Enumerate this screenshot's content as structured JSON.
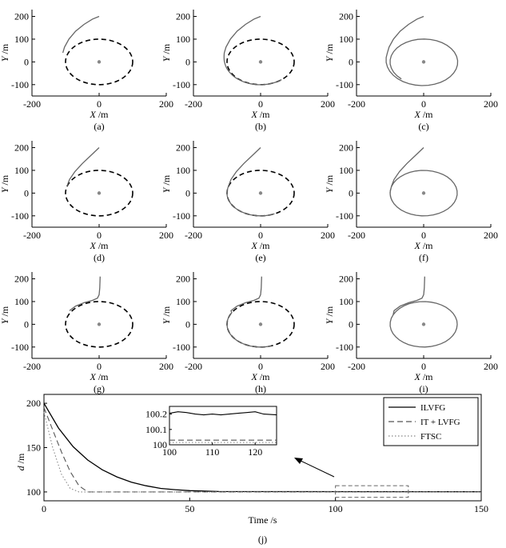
{
  "colors": {
    "trajectory": "#666666",
    "target_circle": "#000000",
    "center_dot": "#888888",
    "ilvfg": "#000000",
    "itlvfg": "#555555",
    "ftsc": "#888888",
    "zoom_box": "#666666"
  },
  "chart_data": [
    {
      "type": "line",
      "caption": "(a)",
      "xlabel_var": "X",
      "xlabel_unit": "/m",
      "ylabel_var": "Y",
      "ylabel_unit": "/m",
      "xlim": [
        -200,
        200
      ],
      "ylim": [
        -150,
        230
      ],
      "xticks": [
        -200,
        0,
        200
      ],
      "yticks": [
        -100,
        0,
        100,
        200
      ],
      "trajectory_method": 1,
      "trajectory_phase": 1,
      "circle_radius": 100,
      "circle_style": "dashed"
    },
    {
      "type": "line",
      "caption": "(b)",
      "xlabel_var": "X",
      "xlabel_unit": "/m",
      "ylabel_var": "Y",
      "ylabel_unit": "/m",
      "xlim": [
        -200,
        200
      ],
      "ylim": [
        -150,
        230
      ],
      "xticks": [
        -200,
        0,
        200
      ],
      "yticks": [
        -100,
        0,
        100,
        200
      ],
      "trajectory_method": 1,
      "trajectory_phase": 2,
      "circle_radius": 100,
      "circle_style": "dashed"
    },
    {
      "type": "line",
      "caption": "(c)",
      "xlabel_var": "X",
      "xlabel_unit": "/m",
      "ylabel_var": "Y",
      "ylabel_unit": "/m",
      "xlim": [
        -200,
        200
      ],
      "ylim": [
        -150,
        230
      ],
      "xticks": [
        -200,
        0,
        200
      ],
      "yticks": [
        -100,
        0,
        100,
        200
      ],
      "trajectory_method": 1,
      "trajectory_phase": 3,
      "circle_radius": 100,
      "circle_style": "hidden"
    },
    {
      "type": "line",
      "caption": "(d)",
      "xlabel_var": "X",
      "xlabel_unit": "/m",
      "ylabel_var": "Y",
      "ylabel_unit": "/m",
      "xlim": [
        -200,
        200
      ],
      "ylim": [
        -150,
        230
      ],
      "xticks": [
        -200,
        0,
        200
      ],
      "yticks": [
        -100,
        0,
        100,
        200
      ],
      "trajectory_method": 2,
      "trajectory_phase": 1,
      "circle_radius": 100,
      "circle_style": "dashed"
    },
    {
      "type": "line",
      "caption": "(e)",
      "xlabel_var": "X",
      "xlabel_unit": "/m",
      "ylabel_var": "Y",
      "ylabel_unit": "/m",
      "xlim": [
        -200,
        200
      ],
      "ylim": [
        -150,
        230
      ],
      "xticks": [
        -200,
        0,
        200
      ],
      "yticks": [
        -100,
        0,
        100,
        200
      ],
      "trajectory_method": 2,
      "trajectory_phase": 2,
      "circle_radius": 100,
      "circle_style": "dashed"
    },
    {
      "type": "line",
      "caption": "(f)",
      "xlabel_var": "X",
      "xlabel_unit": "/m",
      "ylabel_var": "Y",
      "ylabel_unit": "/m",
      "xlim": [
        -200,
        200
      ],
      "ylim": [
        -150,
        230
      ],
      "xticks": [
        -200,
        0,
        200
      ],
      "yticks": [
        -100,
        0,
        100,
        200
      ],
      "trajectory_method": 2,
      "trajectory_phase": 3,
      "circle_radius": 100,
      "circle_style": "hidden"
    },
    {
      "type": "line",
      "caption": "(g)",
      "xlabel_var": "X",
      "xlabel_unit": "/m",
      "ylabel_var": "Y",
      "ylabel_unit": "/m",
      "xlim": [
        -200,
        200
      ],
      "ylim": [
        -150,
        230
      ],
      "xticks": [
        -200,
        0,
        200
      ],
      "yticks": [
        -100,
        0,
        100,
        200
      ],
      "trajectory_method": 3,
      "trajectory_phase": 1,
      "circle_radius": 100,
      "circle_style": "dashed"
    },
    {
      "type": "line",
      "caption": "(h)",
      "xlabel_var": "X",
      "xlabel_unit": "/m",
      "ylabel_var": "Y",
      "ylabel_unit": "/m",
      "xlim": [
        -200,
        200
      ],
      "ylim": [
        -150,
        230
      ],
      "xticks": [
        -200,
        0,
        200
      ],
      "yticks": [
        -100,
        0,
        100,
        200
      ],
      "trajectory_method": 3,
      "trajectory_phase": 2,
      "circle_radius": 100,
      "circle_style": "dashed"
    },
    {
      "type": "line",
      "caption": "(i)",
      "xlabel_var": "X",
      "xlabel_unit": "/m",
      "ylabel_var": "Y",
      "ylabel_unit": "/m",
      "xlim": [
        -200,
        200
      ],
      "ylim": [
        -150,
        230
      ],
      "xticks": [
        -200,
        0,
        200
      ],
      "yticks": [
        -100,
        0,
        100,
        200
      ],
      "trajectory_method": 3,
      "trajectory_phase": 3,
      "circle_radius": 100,
      "circle_style": "hidden"
    },
    {
      "type": "line",
      "caption": "(j)",
      "xlabel": "Time /s",
      "ylabel_var": "d",
      "ylabel_unit": "/m",
      "xlim": [
        0,
        150
      ],
      "ylim": [
        90,
        210
      ],
      "xticks": [
        0,
        50,
        100,
        150
      ],
      "yticks": [
        100,
        150,
        200
      ],
      "legend": "top-right",
      "series": [
        {
          "name": "ILVFG",
          "style": "solid",
          "x": [
            0,
            5,
            10,
            15,
            20,
            25,
            30,
            35,
            40,
            45,
            50,
            60,
            150
          ],
          "y": [
            200,
            172,
            151,
            136,
            125,
            117,
            111,
            107,
            104,
            102.5,
            101.5,
            100.5,
            100.2
          ]
        },
        {
          "name": "IT + LVFG",
          "style": "dashed",
          "x": [
            0,
            3,
            6,
            9,
            12,
            15,
            150
          ],
          "y": [
            195,
            170,
            145,
            123,
            107,
            100,
            100
          ]
        },
        {
          "name": "FTSC",
          "style": "dotted",
          "x": [
            0,
            3,
            6,
            9,
            12,
            150
          ],
          "y": [
            190,
            150,
            120,
            104,
            100,
            100
          ]
        }
      ],
      "zoom_window": {
        "xlim": [
          100,
          125
        ],
        "ylim": [
          100,
          100.05
        ]
      },
      "inset": {
        "xlim": [
          100,
          125
        ],
        "ylim": [
          100,
          100.25
        ],
        "xticks": [
          100,
          110,
          120
        ],
        "yticks": [
          100,
          100.1,
          100.2
        ],
        "series": [
          {
            "name": "ILVFG",
            "style": "solid",
            "x": [
              100,
              102,
              104,
              106,
              108,
              110,
              112,
              114,
              116,
              118,
              120,
              122,
              125
            ],
            "y": [
              100.205,
              100.215,
              100.21,
              100.2,
              100.195,
              100.2,
              100.195,
              100.2,
              100.205,
              100.21,
              100.215,
              100.2,
              100.195
            ]
          },
          {
            "name": "IT + LVFG",
            "style": "dashed",
            "x": [
              100,
              125
            ],
            "y": [
              100.03,
              100.03
            ]
          },
          {
            "name": "FTSC",
            "style": "dotted",
            "x": [
              100,
              125
            ],
            "y": [
              100.015,
              100.015
            ]
          }
        ]
      }
    }
  ]
}
